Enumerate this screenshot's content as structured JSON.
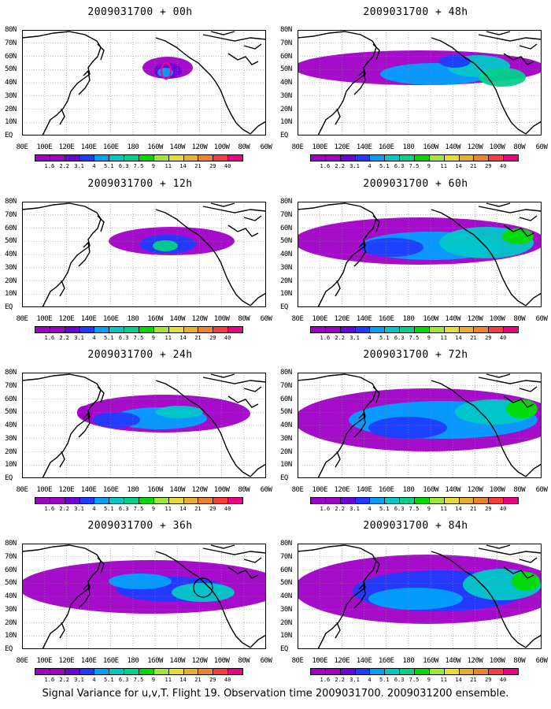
{
  "panels": [
    {
      "title": "2009031700 + 00h"
    },
    {
      "title": "2009031700 + 48h"
    },
    {
      "title": "2009031700 + 12h"
    },
    {
      "title": "2009031700 + 60h"
    },
    {
      "title": "2009031700 + 24h"
    },
    {
      "title": "2009031700 + 72h"
    },
    {
      "title": "2009031700 + 36h"
    },
    {
      "title": "2009031700 + 84h"
    }
  ],
  "lat_labels": [
    "80N",
    "70N",
    "60N",
    "50N",
    "40N",
    "30N",
    "20N",
    "10N",
    "EQ"
  ],
  "lon_labels": [
    "80E",
    "100E",
    "120E",
    "140E",
    "160E",
    "180",
    "160W",
    "140W",
    "120W",
    "100W",
    "80W",
    "60W"
  ],
  "colorbar": {
    "labels": [
      "1.6",
      "2.2",
      "3.1",
      "4",
      "5.1",
      "6.3",
      "7.5",
      "9",
      "11",
      "14",
      "21",
      "29",
      "40"
    ],
    "colors": [
      "#a000c8",
      "#6e00dc",
      "#1e3cff",
      "#00a0ff",
      "#00c8c8",
      "#00d28c",
      "#00dc00",
      "#a0e632",
      "#e6dc32",
      "#e6af2d",
      "#f08228",
      "#fa3c3c",
      "#f00082"
    ]
  },
  "caption": "Signal Variance for u,v,T. Flight 19. Observation time 2009031700. 2009031200 ensemble."
}
